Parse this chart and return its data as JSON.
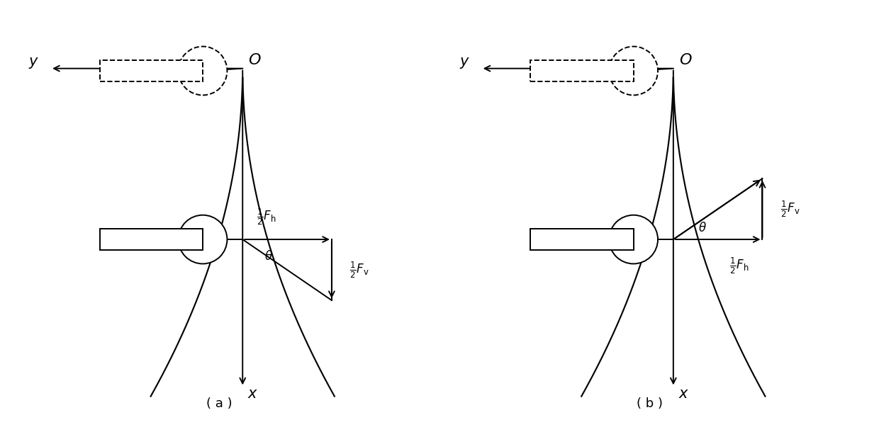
{
  "fig_width": 12.4,
  "fig_height": 6.1,
  "bg_color": "#ffffff",
  "label_a": "( a )",
  "label_b": "( b )",
  "label_fontsize": 13,
  "lw": 1.4
}
